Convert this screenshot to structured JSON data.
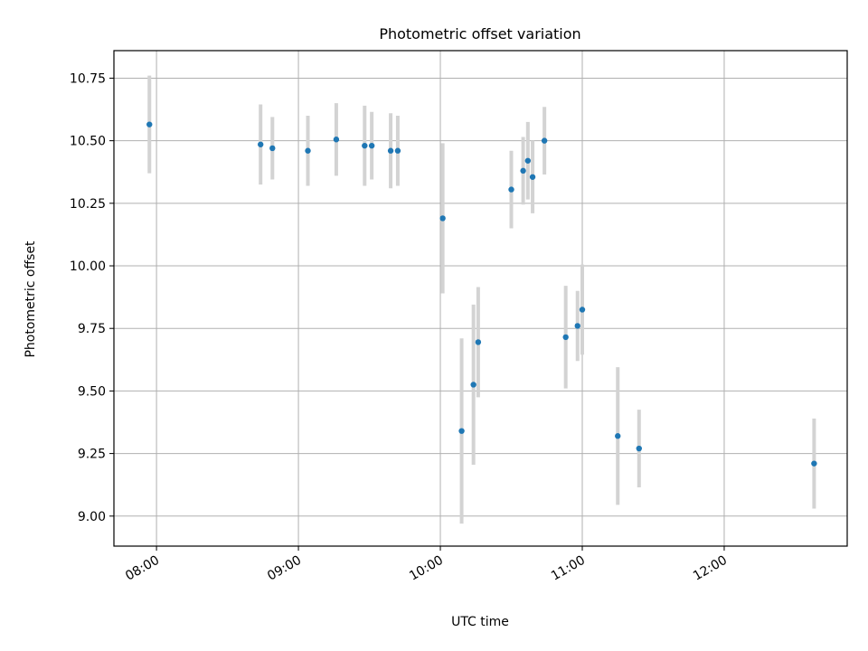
{
  "chart_data": {
    "type": "scatter",
    "title": "Photometric offset variation",
    "xlabel": "UTC time",
    "ylabel": "Photometric offset",
    "x_unit": "UTC time (HH:MM)",
    "xlim": [
      "07:42",
      "12:52"
    ],
    "ylim": [
      8.88,
      10.86
    ],
    "grid": true,
    "x_ticks": [
      "08:00",
      "09:00",
      "10:00",
      "11:00",
      "12:00"
    ],
    "y_ticks": [
      9.0,
      9.25,
      9.5,
      9.75,
      10.0,
      10.25,
      10.5,
      10.75
    ],
    "series": [
      {
        "marker_color": "#1f77b4",
        "errorbar_color": "#d3d3d3",
        "points": [
          {
            "x": "07:57",
            "y": 10.565,
            "yerr": 0.195
          },
          {
            "x": "08:44",
            "y": 10.485,
            "yerr": 0.16
          },
          {
            "x": "08:49",
            "y": 10.47,
            "yerr": 0.125
          },
          {
            "x": "09:04",
            "y": 10.46,
            "yerr": 0.14
          },
          {
            "x": "09:16",
            "y": 10.505,
            "yerr": 0.145
          },
          {
            "x": "09:28",
            "y": 10.48,
            "yerr": 0.16
          },
          {
            "x": "09:31",
            "y": 10.48,
            "yerr": 0.135
          },
          {
            "x": "09:39",
            "y": 10.46,
            "yerr": 0.15
          },
          {
            "x": "09:42",
            "y": 10.46,
            "yerr": 0.14
          },
          {
            "x": "10:01",
            "y": 10.19,
            "yerr": 0.3
          },
          {
            "x": "10:09",
            "y": 9.34,
            "yerr": 0.37
          },
          {
            "x": "10:14",
            "y": 9.525,
            "yerr": 0.32
          },
          {
            "x": "10:16",
            "y": 9.695,
            "yerr": 0.22
          },
          {
            "x": "10:30",
            "y": 10.305,
            "yerr": 0.155
          },
          {
            "x": "10:35",
            "y": 10.38,
            "yerr": 0.135
          },
          {
            "x": "10:37",
            "y": 10.42,
            "yerr": 0.155
          },
          {
            "x": "10:39",
            "y": 10.355,
            "yerr": 0.145
          },
          {
            "x": "10:44",
            "y": 10.5,
            "yerr": 0.135
          },
          {
            "x": "10:53",
            "y": 9.715,
            "yerr": 0.205
          },
          {
            "x": "10:58",
            "y": 9.76,
            "yerr": 0.14
          },
          {
            "x": "11:00",
            "y": 9.825,
            "yerr": 0.18
          },
          {
            "x": "11:15",
            "y": 9.32,
            "yerr": 0.275
          },
          {
            "x": "11:24",
            "y": 9.27,
            "yerr": 0.155
          },
          {
            "x": "12:38",
            "y": 9.21,
            "yerr": 0.18
          }
        ]
      }
    ]
  }
}
